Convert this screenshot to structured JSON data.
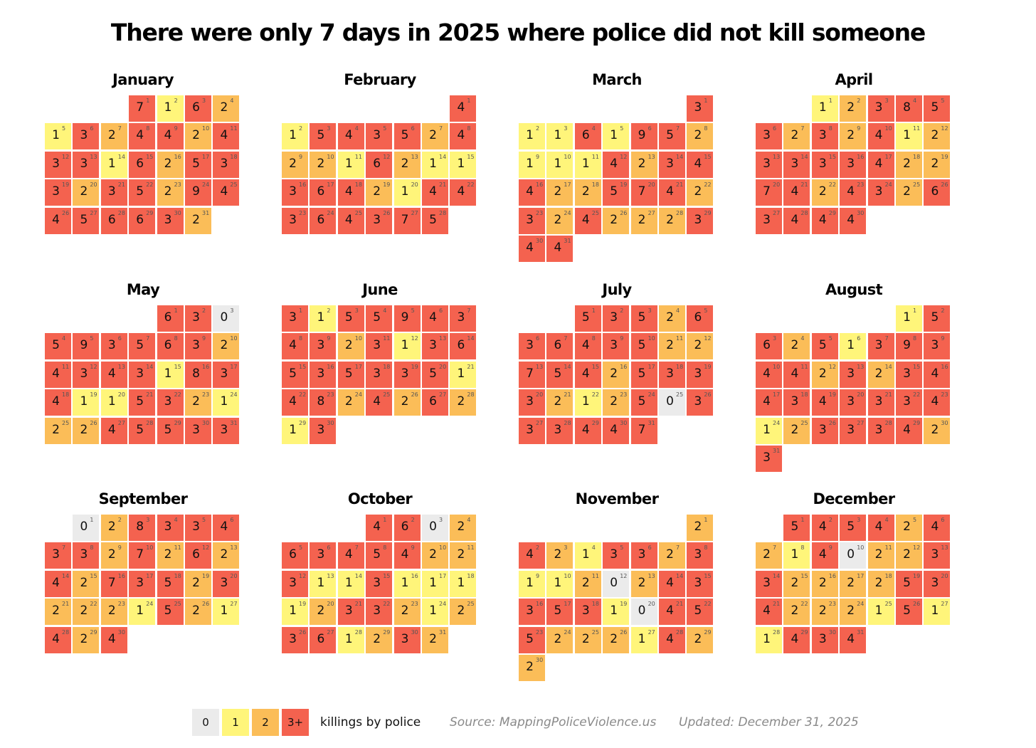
{
  "title": "There were only 7 days in 2025 where police did not kill someone",
  "colors": {
    "0": "#ebebeb",
    "1": "#fff57a",
    "2": "#fbbd58",
    "3+": "#f4624f"
  },
  "chart_data": {
    "type": "heatmap",
    "title": "There were only 7 days in 2025 where police did not kill someone",
    "year": 2025,
    "months": [
      {
        "name": "January",
        "start_weekday": 3,
        "values": [
          7,
          1,
          6,
          2,
          1,
          3,
          2,
          4,
          4,
          2,
          4,
          3,
          3,
          1,
          6,
          2,
          5,
          3,
          3,
          2,
          3,
          5,
          2,
          9,
          4,
          4,
          5,
          6,
          6,
          3,
          2
        ]
      },
      {
        "name": "February",
        "start_weekday": 6,
        "values": [
          4,
          1,
          5,
          4,
          3,
          5,
          2,
          4,
          2,
          2,
          1,
          6,
          2,
          1,
          1,
          3,
          6,
          4,
          2,
          1,
          4,
          4,
          3,
          6,
          4,
          3,
          7,
          5
        ]
      },
      {
        "name": "March",
        "start_weekday": 6,
        "values": [
          3,
          1,
          1,
          6,
          1,
          9,
          5,
          2,
          1,
          1,
          1,
          4,
          2,
          3,
          4,
          4,
          2,
          2,
          5,
          7,
          4,
          2,
          3,
          2,
          4,
          2,
          2,
          2,
          3,
          4,
          4
        ]
      },
      {
        "name": "April",
        "start_weekday": 2,
        "values": [
          1,
          2,
          3,
          8,
          5,
          3,
          2,
          3,
          2,
          4,
          1,
          2,
          3,
          3,
          3,
          3,
          4,
          2,
          2,
          7,
          4,
          2,
          4,
          3,
          2,
          6,
          3,
          4,
          4,
          4
        ]
      },
      {
        "name": "May",
        "start_weekday": 4,
        "values": [
          6,
          3,
          0,
          5,
          9,
          3,
          5,
          6,
          3,
          2,
          4,
          3,
          4,
          3,
          1,
          8,
          3,
          4,
          1,
          1,
          5,
          3,
          2,
          1,
          2,
          2,
          4,
          5,
          5,
          3,
          3
        ]
      },
      {
        "name": "June",
        "start_weekday": 0,
        "values": [
          3,
          1,
          5,
          5,
          9,
          4,
          3,
          4,
          3,
          2,
          3,
          1,
          3,
          6,
          5,
          3,
          5,
          3,
          3,
          5,
          1,
          4,
          8,
          2,
          4,
          2,
          6,
          2,
          1,
          3
        ]
      },
      {
        "name": "July",
        "start_weekday": 2,
        "values": [
          5,
          3,
          5,
          2,
          6,
          3,
          6,
          4,
          3,
          5,
          2,
          2,
          7,
          5,
          4,
          2,
          5,
          3,
          3,
          3,
          2,
          1,
          2,
          5,
          0,
          3,
          3,
          3,
          4,
          4,
          7
        ]
      },
      {
        "name": "August",
        "start_weekday": 5,
        "values": [
          1,
          5,
          6,
          2,
          5,
          1,
          3,
          9,
          3,
          4,
          4,
          2,
          3,
          2,
          3,
          4,
          4,
          3,
          4,
          3,
          3,
          3,
          4,
          1,
          2,
          3,
          3,
          3,
          4,
          2,
          3
        ]
      },
      {
        "name": "September",
        "start_weekday": 1,
        "values": [
          0,
          2,
          8,
          3,
          3,
          4,
          3,
          3,
          2,
          7,
          2,
          6,
          2,
          4,
          2,
          7,
          3,
          5,
          2,
          3,
          2,
          2,
          2,
          1,
          5,
          2,
          1,
          4,
          2,
          4
        ]
      },
      {
        "name": "October",
        "start_weekday": 3,
        "values": [
          4,
          6,
          0,
          2,
          6,
          3,
          4,
          5,
          4,
          2,
          2,
          3,
          1,
          1,
          3,
          1,
          1,
          1,
          1,
          2,
          3,
          3,
          2,
          1,
          2,
          3,
          6,
          1,
          2,
          3,
          2
        ]
      },
      {
        "name": "November",
        "start_weekday": 6,
        "values": [
          2,
          4,
          2,
          1,
          3,
          3,
          2,
          3,
          1,
          1,
          2,
          0,
          2,
          4,
          3,
          3,
          5,
          3,
          1,
          0,
          4,
          5,
          5,
          2,
          2,
          2,
          1,
          4,
          2,
          2
        ]
      },
      {
        "name": "December",
        "start_weekday": 1,
        "values": [
          5,
          4,
          5,
          4,
          2,
          4,
          2,
          1,
          4,
          0,
          2,
          2,
          3,
          3,
          2,
          2,
          2,
          2,
          5,
          3,
          4,
          2,
          2,
          2,
          1,
          5,
          1,
          1,
          4,
          3,
          4
        ]
      }
    ]
  },
  "legend": {
    "items": [
      {
        "label": "0",
        "color": "#ebebeb"
      },
      {
        "label": "1",
        "color": "#fff57a"
      },
      {
        "label": "2",
        "color": "#fbbd58"
      },
      {
        "label": "3+",
        "color": "#f4624f"
      }
    ],
    "label": "killings by police"
  },
  "source": "Source: MappingPoliceViolence.us",
  "updated": "Updated: December 31, 2025"
}
